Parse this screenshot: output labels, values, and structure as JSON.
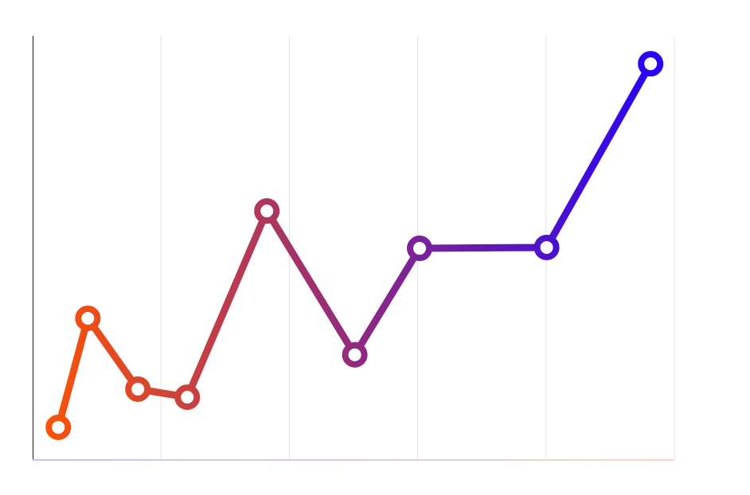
{
  "chart_data": {
    "type": "line",
    "title": "",
    "xlabel": "",
    "ylabel": "",
    "xlim": [
      0,
      100
    ],
    "ylim": [
      0,
      100
    ],
    "grid": "vertical",
    "x_gridlines": [
      20,
      40,
      60,
      80,
      100
    ],
    "series": [
      {
        "x": [
          4.0,
          8.6,
          16.4,
          24.1,
          36.5,
          50.2,
          60.3,
          80.1,
          96.3
        ],
        "y": [
          7.7,
          33.4,
          16.7,
          14.8,
          58.7,
          24.8,
          49.9,
          50.1,
          93.4
        ]
      }
    ],
    "colors": {
      "start": "#ff5500",
      "end": "#2200ff",
      "grid": "#e2e2e2",
      "marker_fill": "#ffffff"
    }
  }
}
